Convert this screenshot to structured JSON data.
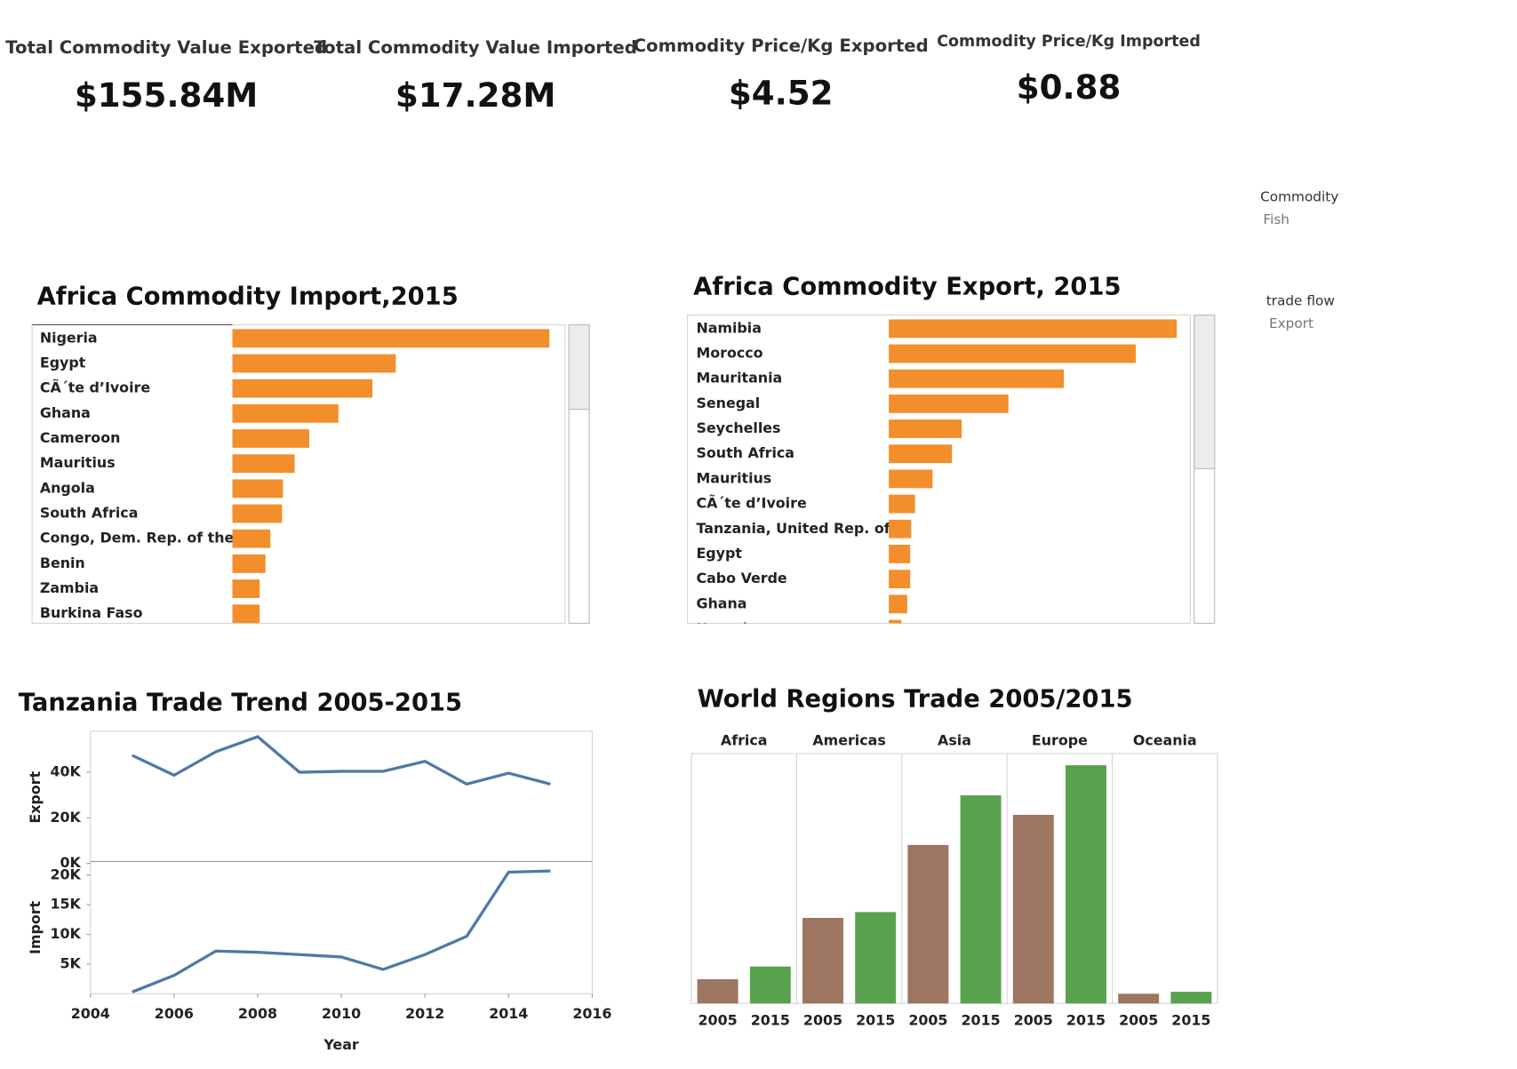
{
  "kpis": [
    {
      "label": "Total Commodity Value Exported",
      "value": "$155.84M"
    },
    {
      "label": "Total Commodity Value Imported",
      "value": "$17.28M"
    },
    {
      "label": "Commodity Price/Kg Exported",
      "value": "$4.52"
    },
    {
      "label": "Commodity Price/Kg Imported",
      "value": "$0.88"
    }
  ],
  "filters": [
    {
      "label": "Commodity",
      "value": "Fish"
    },
    {
      "label": "trade flow",
      "value": "Export"
    }
  ],
  "chart_data": [
    {
      "type": "bar",
      "orientation": "horizontal",
      "title": "Africa Commodity Import,2015",
      "color": "#f28e2b",
      "categories": [
        "Nigeria",
        "Egypt",
        "CÃ´te d’Ivoire",
        "Ghana",
        "Cameroon",
        "Mauritius",
        "Angola",
        "South Africa",
        "Congo, Dem. Rep. of the",
        "Benin",
        "Zambia",
        "Burkina Faso"
      ],
      "values": [
        326,
        168,
        144,
        109,
        79,
        64,
        52,
        51,
        39,
        34,
        28,
        28
      ]
    },
    {
      "type": "bar",
      "orientation": "horizontal",
      "title": "Africa Commodity Export, 2015",
      "color": "#f28e2b",
      "categories": [
        "Namibia",
        "Morocco",
        "Mauritania",
        "Senegal",
        "Seychelles",
        "South Africa",
        "Mauritius",
        "CÃ´te d’Ivoire",
        "Tanzania, United Rep. of",
        "Egypt",
        "Cabo Verde",
        "Ghana",
        "Uganda"
      ],
      "values": [
        296,
        254,
        180,
        123,
        75,
        65,
        45,
        27,
        23,
        22,
        22,
        19,
        13
      ]
    },
    {
      "type": "line",
      "title": "Tanzania Trade Trend 2005-2015",
      "x_label": "Year",
      "x": [
        2005,
        2006,
        2007,
        2008,
        2009,
        2010,
        2011,
        2012,
        2013,
        2014,
        2015
      ],
      "xlim": [
        2004,
        2016
      ],
      "xticks": [
        2004,
        2006,
        2008,
        2010,
        2012,
        2014,
        2016
      ],
      "ylim": [
        0,
        58000
      ],
      "yticks": [
        {
          "value": 0,
          "label": "0K"
        },
        {
          "value": 20000,
          "label": "20K"
        },
        {
          "value": 40000,
          "label": "40K"
        }
      ],
      "y2lim": [
        0,
        22300
      ],
      "y2ticks": [
        {
          "value": 5000,
          "label": "5K"
        },
        {
          "value": 10000,
          "label": "10K"
        },
        {
          "value": 15000,
          "label": "15K"
        },
        {
          "value": 20000,
          "label": "20K"
        }
      ],
      "series": [
        {
          "name": "Export",
          "color": "#4e79a7",
          "values": [
            47400,
            38700,
            49000,
            55600,
            40000,
            40400,
            40400,
            44800,
            34800,
            39600,
            34800
          ]
        },
        {
          "name": "Import",
          "color": "#4e79a7",
          "axis": "y2",
          "values": [
            300,
            3100,
            7200,
            7000,
            6600,
            6200,
            4100,
            6600,
            9700,
            20500,
            20700
          ]
        }
      ]
    },
    {
      "type": "grouped-bar",
      "title": "World Regions Trade 2005/2015",
      "categories": [
        "Africa",
        "Americas",
        "Asia",
        "Europe",
        "Oceania"
      ],
      "series": [
        {
          "name": "2005",
          "color": "#9c7660",
          "values": [
            25,
            88,
            163,
            194,
            10
          ]
        },
        {
          "name": "2015",
          "color": "#59a14f",
          "values": [
            38,
            94,
            214,
            245,
            12
          ]
        }
      ]
    }
  ]
}
